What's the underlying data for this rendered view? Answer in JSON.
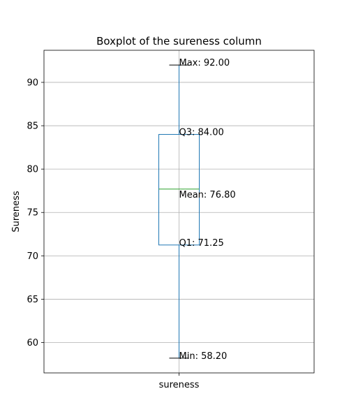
{
  "chart_data": {
    "type": "box",
    "title": "Boxplot of the sureness column",
    "xlabel": "",
    "ylabel": "Sureness",
    "categories": [
      "sureness"
    ],
    "ylim": [
      56.5,
      93.7
    ],
    "yticks": [
      60,
      65,
      70,
      75,
      80,
      85,
      90
    ],
    "grid": true,
    "box": {
      "min": 58.2,
      "q1": 71.25,
      "median": 77.7,
      "q3": 84.0,
      "max": 92.0,
      "mean": 76.8
    },
    "annotations": [
      {
        "key": "max",
        "text": "Max: 92.00",
        "y": 92.0
      },
      {
        "key": "q3",
        "text": "Q3: 84.00",
        "y": 84.0
      },
      {
        "key": "mean",
        "text": "Mean: 76.80",
        "y": 76.8
      },
      {
        "key": "q1",
        "text": "Q1: 71.25",
        "y": 71.25
      },
      {
        "key": "min",
        "text": "Min: 58.20",
        "y": 58.2
      }
    ],
    "colors": {
      "box": "#1f77b4",
      "median": "#2ca02c",
      "whisker": "#1f77b4",
      "cap": "#000000",
      "grid": "#b0b0b0"
    }
  }
}
